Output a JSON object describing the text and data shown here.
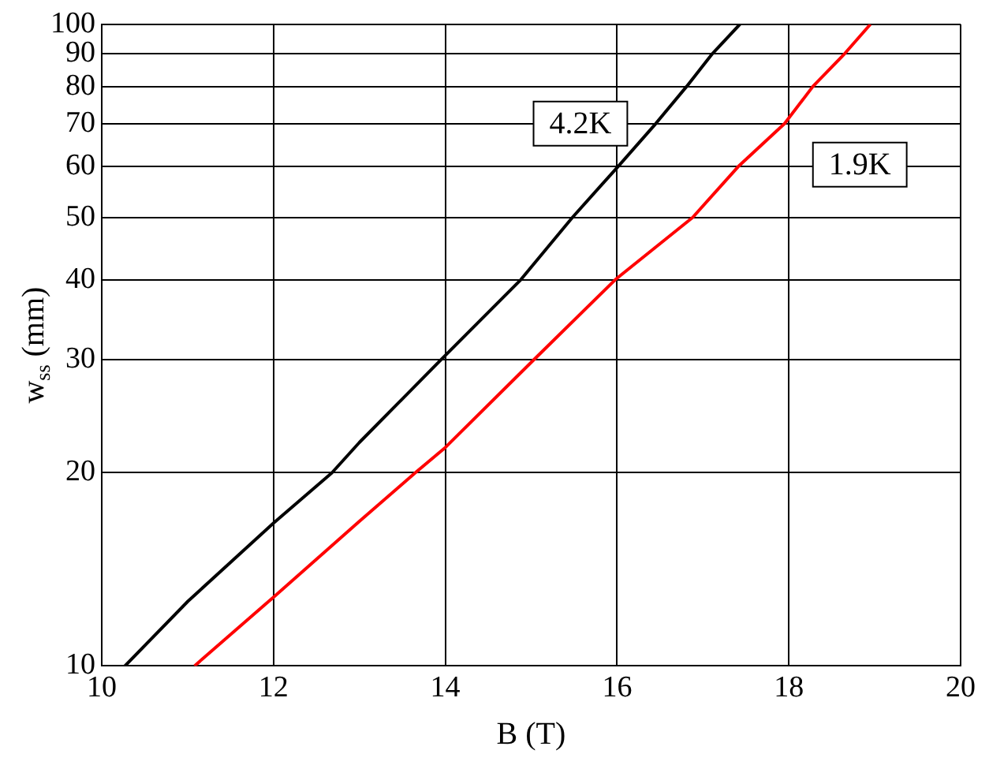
{
  "chart_data": {
    "type": "line",
    "xlabel": "B (T)",
    "ylabel": "w$_{ss}$ (mm)",
    "log": "y",
    "xlim": [
      10,
      20
    ],
    "xticks": [
      10,
      12,
      14,
      16,
      18,
      20
    ],
    "ylim": [
      10,
      100
    ],
    "yticks": [
      10,
      20,
      30,
      40,
      50,
      60,
      70,
      80,
      90,
      100
    ],
    "grid": true,
    "legend": false,
    "marker": "none",
    "line_style": "solid",
    "series": [
      {
        "name": "4.2K",
        "color": "#000000",
        "x": [
          10.27,
          11,
          12,
          12.68,
          13,
          13.95,
          14.88,
          15.48,
          16.01,
          16.45,
          16.81,
          17.11,
          17.43
        ],
        "values": [
          10,
          12.6,
          16.7,
          20,
          22.3,
          30,
          40,
          50,
          60,
          70,
          80,
          90,
          100
        ]
      },
      {
        "name": "1.9K",
        "color": "#ff0000",
        "x": [
          11.08,
          12,
          13,
          13.65,
          14,
          15.03,
          15.98,
          16.88,
          17.41,
          17.95,
          18.28,
          18.65,
          18.95
        ],
        "values": [
          10,
          12.8,
          16.8,
          20,
          21.9,
          30,
          40,
          50,
          60,
          70,
          80,
          90,
          100
        ]
      }
    ]
  }
}
